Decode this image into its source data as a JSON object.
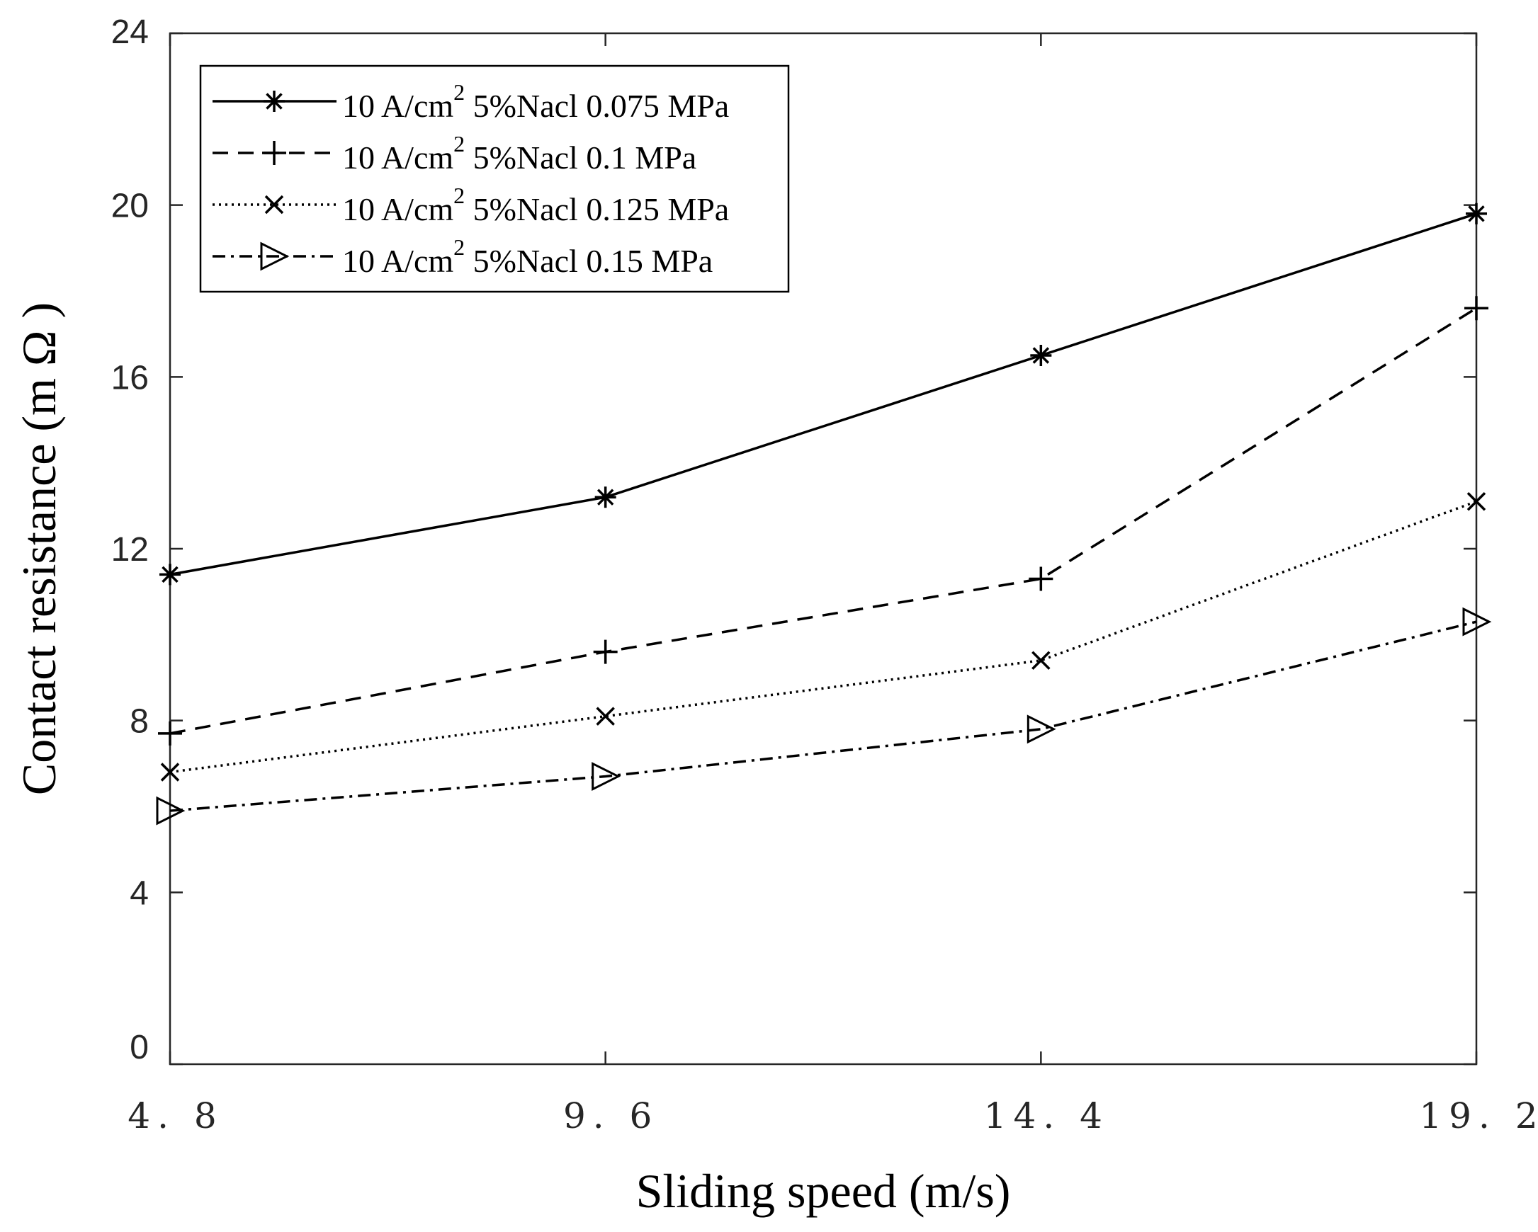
{
  "chart_data": {
    "type": "line",
    "title": "",
    "xlabel": "Sliding speed (m/s)",
    "ylabel": "Contact resistance (m Ω )",
    "x": [
      4.8,
      9.6,
      14.4,
      19.2
    ],
    "x_tick_labels": [
      "4. 8",
      "9. 6",
      "14. 4",
      "19. 2"
    ],
    "y_ticks": [
      0,
      4,
      8,
      12,
      16,
      20,
      24
    ],
    "y_tick_labels": [
      "0",
      "4",
      "8",
      "12",
      "16",
      "20",
      "24"
    ],
    "xlim": [
      4.8,
      19.2
    ],
    "ylim": [
      0,
      24
    ],
    "grid": false,
    "legend_position": "top-left",
    "series": [
      {
        "name": "10 A/cm2 5%Nacl 0.075 MPa",
        "label_prefix": "10 A/cm",
        "label_sup": "2",
        "label_suffix": " 5%Nacl 0.075 MPa",
        "values": [
          11.4,
          13.2,
          16.5,
          19.8
        ],
        "line_style": "solid",
        "marker": "asterisk"
      },
      {
        "name": "10 A/cm2 5%Nacl 0.1 MPa",
        "label_prefix": "10 A/cm",
        "label_sup": "2",
        "label_suffix": " 5%Nacl 0.1 MPa",
        "values": [
          7.7,
          9.6,
          11.3,
          17.6
        ],
        "line_style": "dashed",
        "marker": "plus"
      },
      {
        "name": "10 A/cm2 5%Nacl 0.125 MPa",
        "label_prefix": "10 A/cm",
        "label_sup": "2",
        "label_suffix": " 5%Nacl 0.125 MPa",
        "values": [
          6.8,
          8.1,
          9.4,
          13.1
        ],
        "line_style": "dotted",
        "marker": "x"
      },
      {
        "name": "10 A/cm2 5%Nacl 0.15 MPa",
        "label_prefix": "10 A/cm",
        "label_sup": "2",
        "label_suffix": " 5%Nacl 0.15 MPa",
        "values": [
          5.9,
          6.7,
          7.8,
          10.3
        ],
        "line_style": "dashdot",
        "marker": "triangle-right"
      }
    ],
    "colors": {
      "axes": "#262626",
      "series": "#000000",
      "background": "#ffffff"
    }
  }
}
